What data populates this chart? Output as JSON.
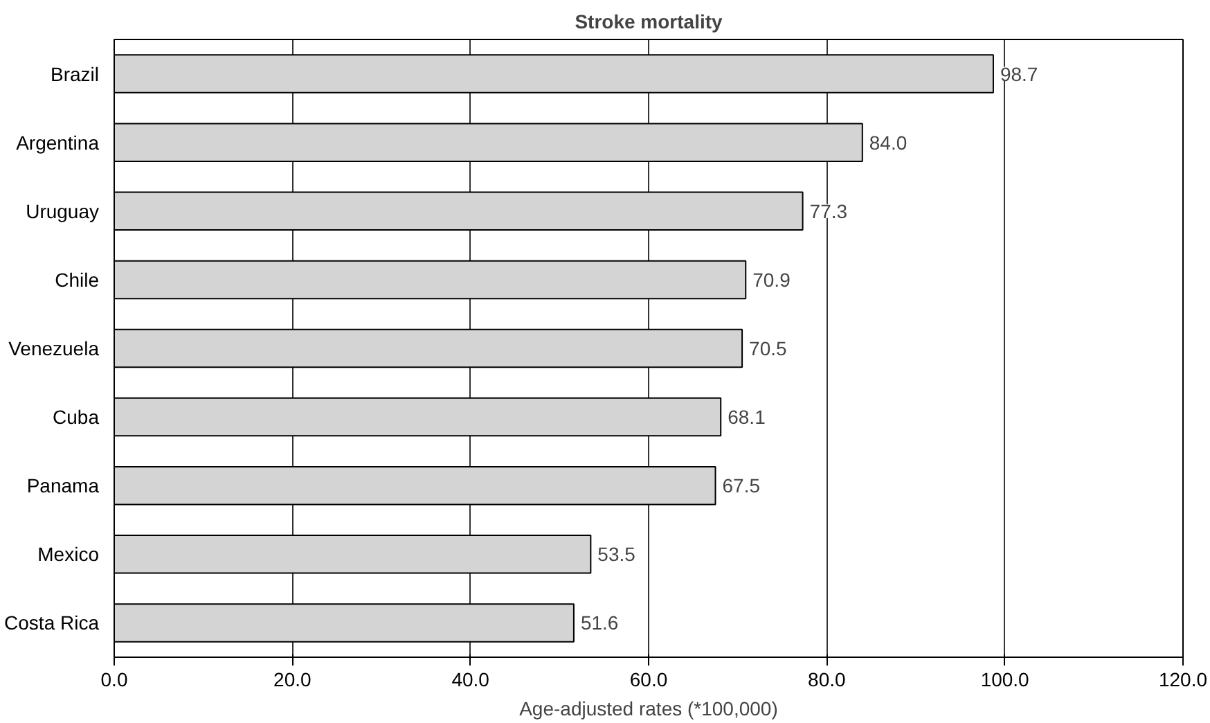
{
  "chart_data": {
    "type": "bar",
    "orientation": "horizontal",
    "title": "Stroke mortality",
    "xlabel": "Age-adjusted rates (*100,000)",
    "categories": [
      "Brazil",
      "Argentina",
      "Uruguay",
      "Chile",
      "Venezuela",
      "Cuba",
      "Panama",
      "Mexico",
      "Costa Rica"
    ],
    "values": [
      98.7,
      84.0,
      77.3,
      70.9,
      70.5,
      68.1,
      67.5,
      53.5,
      51.6
    ],
    "color": "#d4d4d4",
    "xlim": [
      0,
      120
    ],
    "xticks": [
      {
        "value": 0,
        "label": "0.0"
      },
      {
        "value": 20,
        "label": "20.0"
      },
      {
        "value": 40,
        "label": "40.0"
      },
      {
        "value": 60,
        "label": "60.0"
      },
      {
        "value": 80,
        "label": "80.0"
      },
      {
        "value": 100,
        "label": "100.0"
      },
      {
        "value": 120,
        "label": "120.0"
      }
    ],
    "value_labels": [
      "98.7",
      "84.0",
      "77.3",
      "70.9",
      "70.5",
      "68.1",
      "67.5",
      "53.5",
      "51.6"
    ],
    "grid": "x"
  }
}
